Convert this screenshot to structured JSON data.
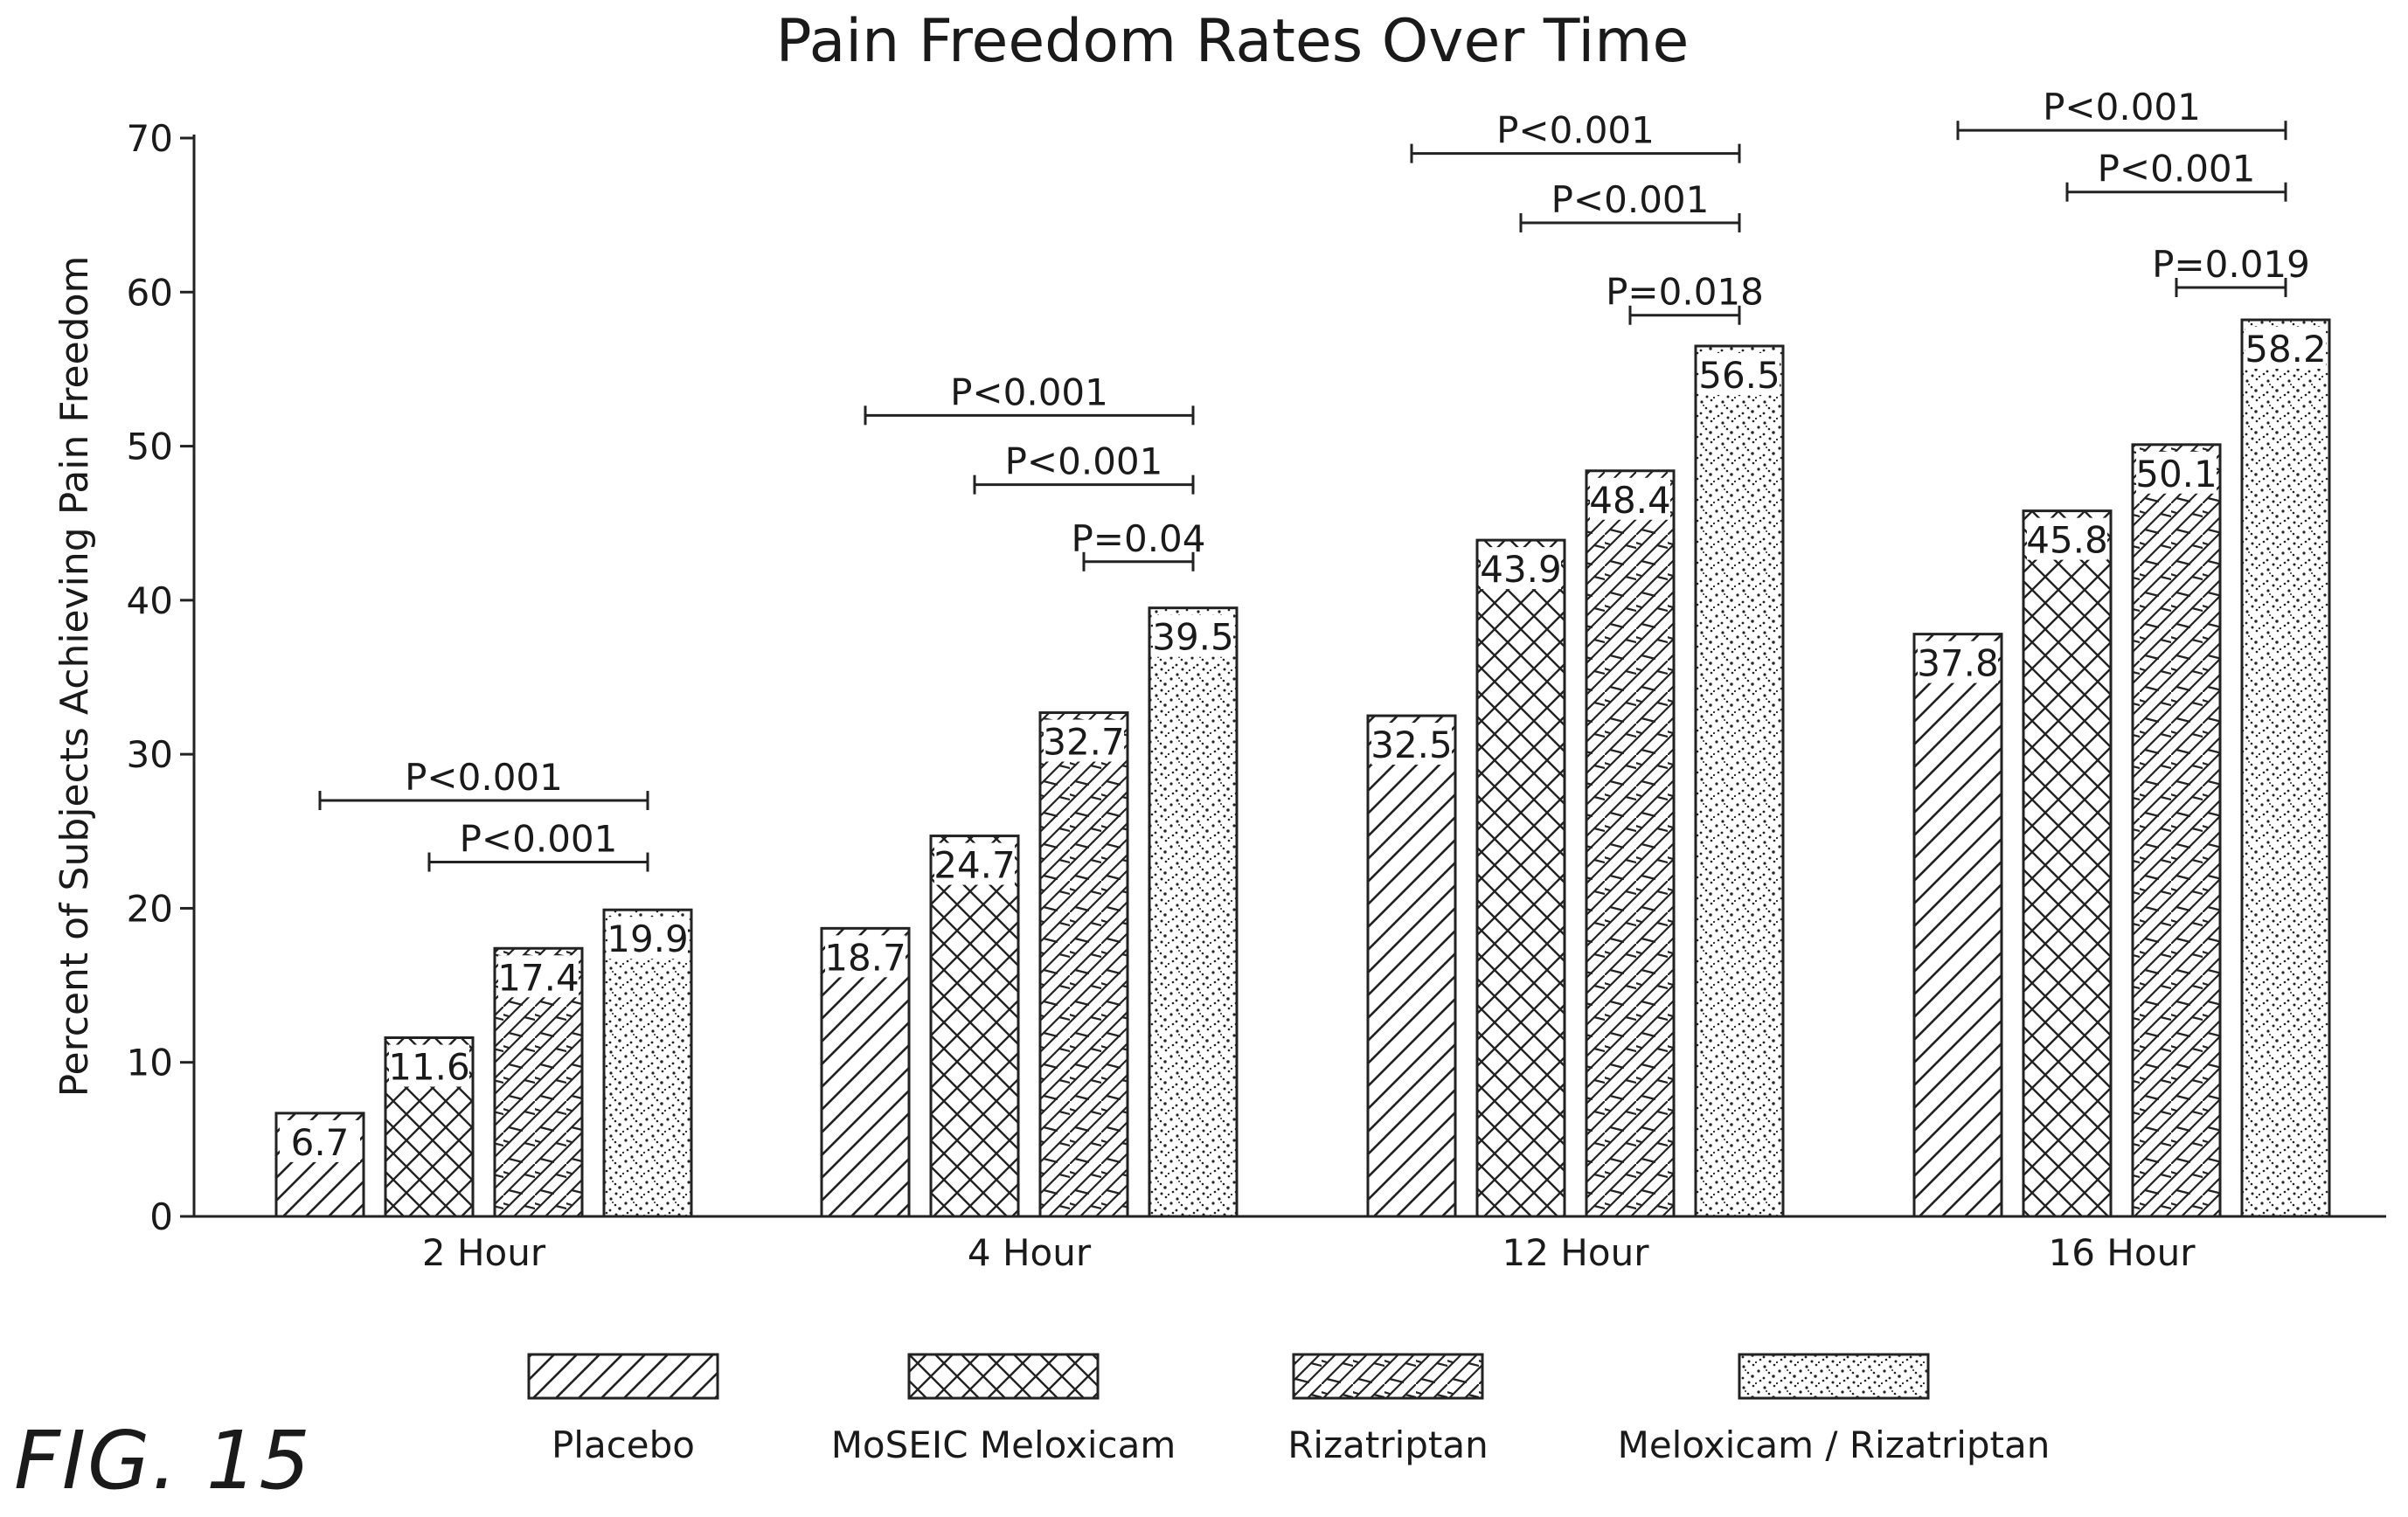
{
  "figure_label": "FIG. 15",
  "chart_data": {
    "type": "bar",
    "title": "Pain Freedom Rates Over Time",
    "xlabel": "",
    "ylabel": "Percent of Subjects Achieving Pain Freedom",
    "ylim": [
      0,
      70
    ],
    "yticks": [
      0,
      10,
      20,
      30,
      40,
      50,
      60,
      70
    ],
    "grid": false,
    "legend_position": "bottom",
    "categories": [
      "2 Hour",
      "4 Hour",
      "12 Hour",
      "16 Hour"
    ],
    "series": [
      {
        "name": "Placebo",
        "pattern": "diagonal-hatch",
        "values": [
          6.7,
          18.7,
          32.5,
          37.8
        ],
        "labels": [
          "6.7",
          "18.7",
          "32.5",
          "37.8"
        ]
      },
      {
        "name": "MoSEIC Meloxicam",
        "pattern": "cross-hatch",
        "values": [
          11.6,
          24.7,
          43.9,
          45.8
        ],
        "labels": [
          "11.6",
          "24.7",
          "43.9",
          "45.8"
        ]
      },
      {
        "name": "Rizatriptan",
        "pattern": "brick",
        "values": [
          17.4,
          32.7,
          48.4,
          50.1
        ],
        "labels": [
          "17.4",
          "32.7",
          "48.4",
          "50.1"
        ]
      },
      {
        "name": "Meloxicam / Rizatriptan",
        "pattern": "stipple",
        "values": [
          19.9,
          39.5,
          56.5,
          58.2
        ],
        "labels": [
          "19.9",
          "39.5",
          "56.5",
          "58.2"
        ]
      }
    ],
    "annotations": [
      {
        "category": 0,
        "from_series": 0,
        "to_series": 3,
        "level": 27,
        "text": "P<0.001"
      },
      {
        "category": 0,
        "from_series": 1,
        "to_series": 3,
        "level": 23,
        "text": "P<0.001"
      },
      {
        "category": 1,
        "from_series": 0,
        "to_series": 3,
        "level": 52,
        "text": "P<0.001"
      },
      {
        "category": 1,
        "from_series": 1,
        "to_series": 3,
        "level": 47.5,
        "text": "P<0.001"
      },
      {
        "category": 1,
        "from_series": 2,
        "to_series": 3,
        "level": 42.5,
        "text": "P=0.04"
      },
      {
        "category": 2,
        "from_series": 0,
        "to_series": 3,
        "level": 69,
        "text": "P<0.001"
      },
      {
        "category": 2,
        "from_series": 1,
        "to_series": 3,
        "level": 64.5,
        "text": "P<0.001"
      },
      {
        "category": 2,
        "from_series": 2,
        "to_series": 3,
        "level": 58.5,
        "text": "P=0.018"
      },
      {
        "category": 3,
        "from_series": 0,
        "to_series": 3,
        "level": 70.5,
        "text": "P<0.001"
      },
      {
        "category": 3,
        "from_series": 1,
        "to_series": 3,
        "level": 66.5,
        "text": "P<0.001"
      },
      {
        "category": 3,
        "from_series": 2,
        "to_series": 3,
        "level": 60.3,
        "text": "P=0.019"
      }
    ]
  }
}
